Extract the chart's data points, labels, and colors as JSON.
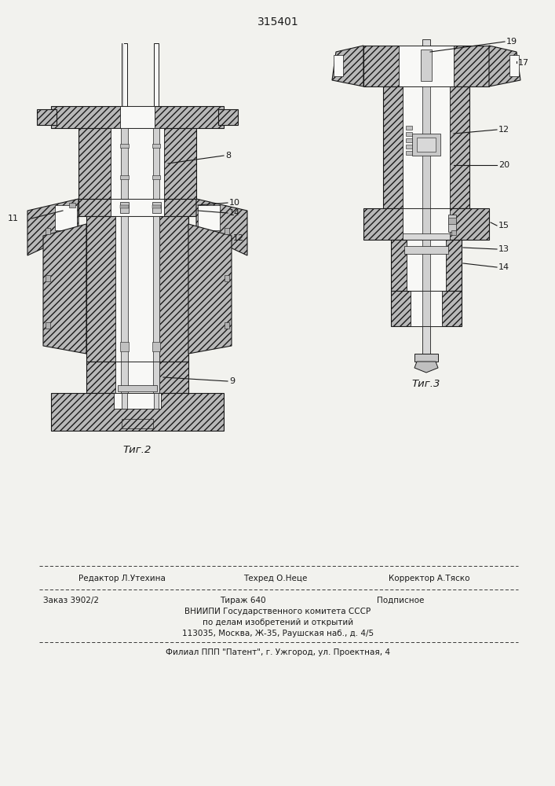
{
  "patent_number": "315401",
  "background_color": "#f2f2ee",
  "line_color": "#1a1a1a",
  "fig2_label": "Τиг.2",
  "fig3_label": "Τиг.3",
  "footer_line1a": "Редактор Л.Утехина",
  "footer_line1b": "Техред О.Неце",
  "footer_line1c": "Корректор А.Тяско",
  "footer_line2a": "Заказ 3902/2",
  "footer_line2b": "Тираж 640",
  "footer_line2c": "Подписное",
  "footer_line3": "ВНИИПИ Государственного комитета СССР",
  "footer_line4": "по делам изобретений и открытий",
  "footer_line5": "113035, Москва, Ж-35, Раушская наб., д. 4/5",
  "footer_line6": "Филиал ППП \"Патент\", г. Ужгород, ул. Проектная, 4"
}
